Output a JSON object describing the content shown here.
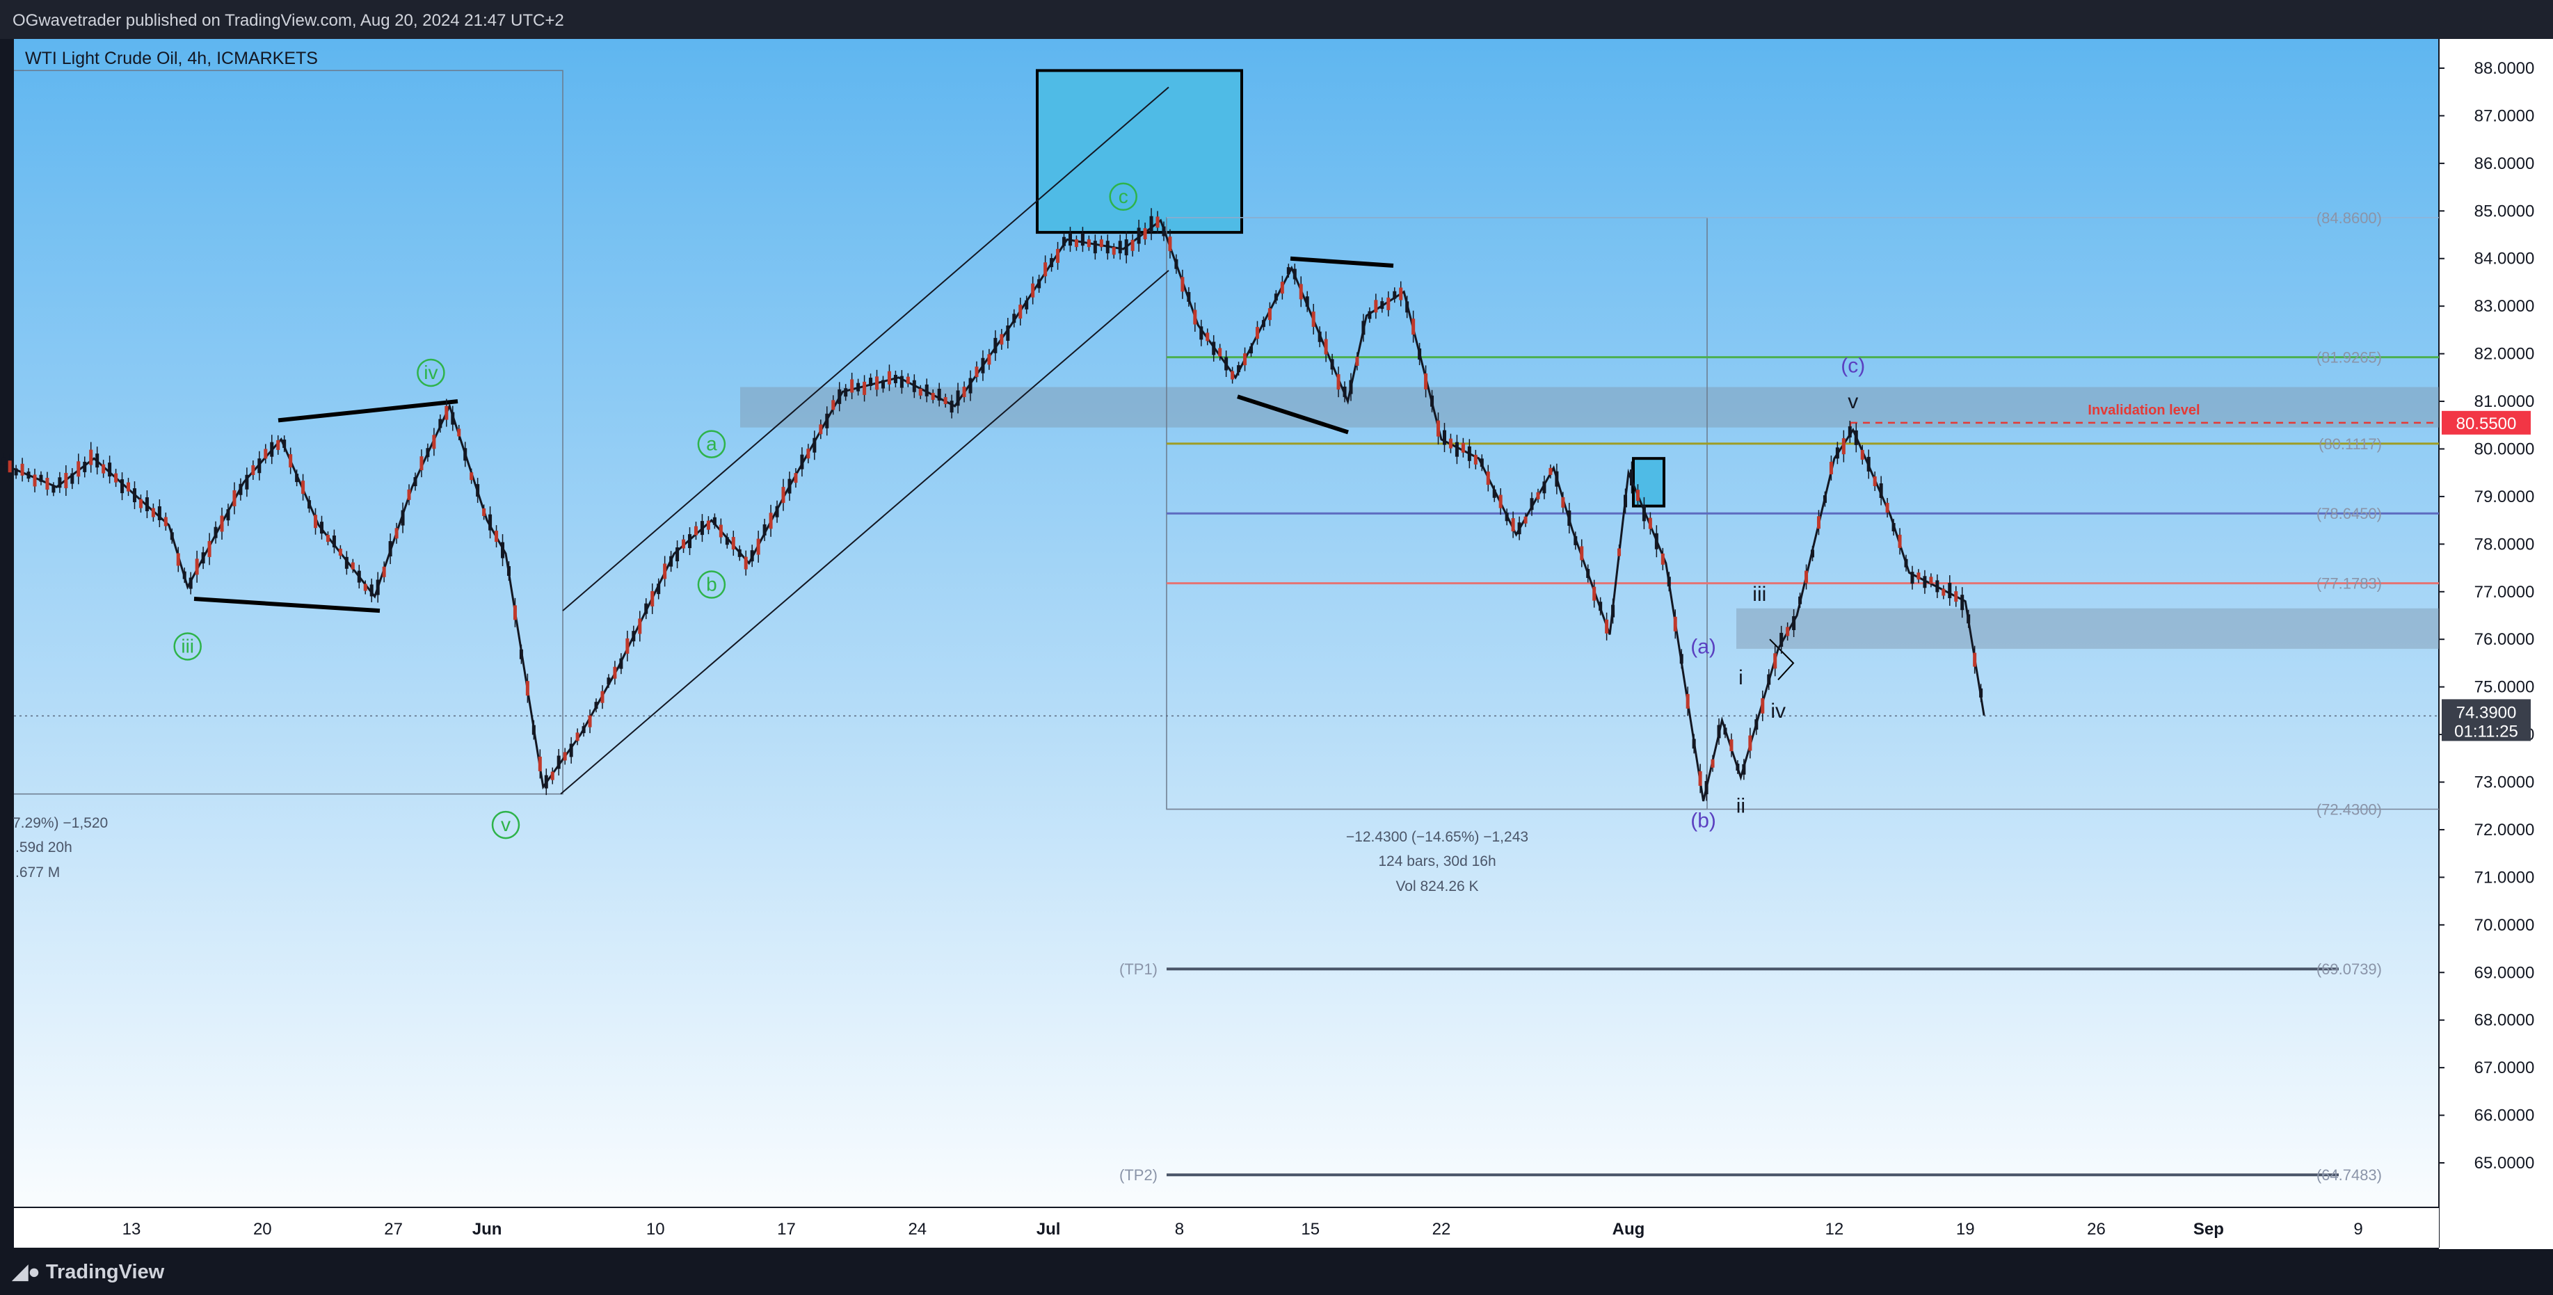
{
  "header": {
    "publisher": "OGwavetrader published on TradingView.com, Aug 20, 2024 21:47 UTC+2"
  },
  "footer": {
    "logo": "TradingView"
  },
  "chart_data": {
    "type": "candlestick",
    "title": "WTI Light Crude Oil, 4h, ICMARKETS",
    "ylim": [
      64.3,
      88.7
    ],
    "y_ticks": [
      "65.0000",
      "66.0000",
      "67.0000",
      "68.0000",
      "69.0000",
      "70.0000",
      "71.0000",
      "72.0000",
      "73.0000",
      "74.0000",
      "75.0000",
      "76.0000",
      "77.0000",
      "78.0000",
      "79.0000",
      "80.0000",
      "81.0000",
      "82.0000",
      "83.0000",
      "84.0000",
      "85.0000",
      "86.0000",
      "87.0000",
      "88.0000"
    ],
    "x_ticks": [
      {
        "label": "13",
        "date": "2024-05-13"
      },
      {
        "label": "20",
        "date": "2024-05-20"
      },
      {
        "label": "27",
        "date": "2024-05-27"
      },
      {
        "label": "Jun",
        "date": "2024-06-01"
      },
      {
        "label": "10",
        "date": "2024-06-10"
      },
      {
        "label": "17",
        "date": "2024-06-17"
      },
      {
        "label": "24",
        "date": "2024-06-24"
      },
      {
        "label": "Jul",
        "date": "2024-07-01"
      },
      {
        "label": "8",
        "date": "2024-07-08"
      },
      {
        "label": "15",
        "date": "2024-07-15"
      },
      {
        "label": "22",
        "date": "2024-07-22"
      },
      {
        "label": "Aug",
        "date": "2024-08-01"
      },
      {
        "label": "12",
        "date": "2024-08-12"
      },
      {
        "label": "19",
        "date": "2024-08-19"
      },
      {
        "label": "26",
        "date": "2024-08-26"
      },
      {
        "label": "Sep",
        "date": "2024-09-01"
      },
      {
        "label": "9",
        "date": "2024-09-09"
      }
    ],
    "price_path": [
      {
        "date": "2024-05-06",
        "price": 79.7
      },
      {
        "date": "2024-05-09",
        "price": 79.2
      },
      {
        "date": "2024-05-11",
        "price": 79.8
      },
      {
        "date": "2024-05-15",
        "price": 78.4
      },
      {
        "date": "2024-05-16",
        "price": 77.1
      },
      {
        "date": "2024-05-19",
        "price": 79.3
      },
      {
        "date": "2024-05-21",
        "price": 80.2
      },
      {
        "date": "2024-05-23",
        "price": 78.4
      },
      {
        "date": "2024-05-26",
        "price": 76.9
      },
      {
        "date": "2024-05-28",
        "price": 79.2
      },
      {
        "date": "2024-05-30",
        "price": 80.9
      },
      {
        "date": "2024-06-01",
        "price": 78.5
      },
      {
        "date": "2024-06-02",
        "price": 77.8
      },
      {
        "date": "2024-06-04",
        "price": 72.9
      },
      {
        "date": "2024-06-06",
        "price": 74.0
      },
      {
        "date": "2024-06-08",
        "price": 75.4
      },
      {
        "date": "2024-06-11",
        "price": 77.8
      },
      {
        "date": "2024-06-13",
        "price": 78.5
      },
      {
        "date": "2024-06-15",
        "price": 77.6
      },
      {
        "date": "2024-06-17",
        "price": 79.1
      },
      {
        "date": "2024-06-20",
        "price": 81.2
      },
      {
        "date": "2024-06-23",
        "price": 81.5
      },
      {
        "date": "2024-06-26",
        "price": 80.9
      },
      {
        "date": "2024-06-29",
        "price": 82.6
      },
      {
        "date": "2024-07-02",
        "price": 84.4
      },
      {
        "date": "2024-07-05",
        "price": 84.2
      },
      {
        "date": "2024-07-07",
        "price": 84.8
      },
      {
        "date": "2024-07-09",
        "price": 82.6
      },
      {
        "date": "2024-07-11",
        "price": 81.5
      },
      {
        "date": "2024-07-14",
        "price": 83.8
      },
      {
        "date": "2024-07-17",
        "price": 81.0
      },
      {
        "date": "2024-07-18",
        "price": 82.8
      },
      {
        "date": "2024-07-20",
        "price": 83.3
      },
      {
        "date": "2024-07-22",
        "price": 80.2
      },
      {
        "date": "2024-07-24",
        "price": 79.8
      },
      {
        "date": "2024-07-26",
        "price": 78.2
      },
      {
        "date": "2024-07-28",
        "price": 79.6
      },
      {
        "date": "2024-07-29",
        "price": 78.3
      },
      {
        "date": "2024-07-31",
        "price": 76.1
      },
      {
        "date": "2024-08-01",
        "price": 79.5
      },
      {
        "date": "2024-08-03",
        "price": 77.6
      },
      {
        "date": "2024-08-05",
        "price": 72.6
      },
      {
        "date": "2024-08-06",
        "price": 74.3
      },
      {
        "date": "2024-08-07",
        "price": 73.1
      },
      {
        "date": "2024-08-09",
        "price": 75.8
      },
      {
        "date": "2024-08-10",
        "price": 76.5
      },
      {
        "date": "2024-08-12",
        "price": 79.8
      },
      {
        "date": "2024-08-13",
        "price": 80.4
      },
      {
        "date": "2024-08-15",
        "price": 78.6
      },
      {
        "date": "2024-08-16",
        "price": 77.4
      },
      {
        "date": "2024-08-18",
        "price": 77.0
      },
      {
        "date": "2024-08-19",
        "price": 76.8
      },
      {
        "date": "2024-08-20",
        "price": 74.4
      }
    ],
    "h_levels": [
      {
        "label": "(84.8600)",
        "value": 84.86,
        "color": "#8fb3d6"
      },
      {
        "label": "(81.9265)",
        "value": 81.9265,
        "color": "#4caf50"
      },
      {
        "label": "(80.1117)",
        "value": 80.1117,
        "color": "#9e9d24"
      },
      {
        "label": "(78.6450)",
        "value": 78.645,
        "color": "#5c6bc0"
      },
      {
        "label": "(77.1783)",
        "value": 77.1783,
        "color": "#e57373"
      },
      {
        "label": "(72.4300)",
        "value": 72.43,
        "color": "#7a8599"
      }
    ],
    "tp_levels": [
      {
        "label": "(TP1)",
        "price": "(69.0739)",
        "value": 69.0739
      },
      {
        "label": "(TP2)",
        "price": "(64.7483)",
        "value": 64.7483
      }
    ],
    "current_price": {
      "value": 74.39,
      "label": "74.3900",
      "countdown": "01:11:25"
    },
    "invalidation": {
      "value": 80.55,
      "label": "80.5500",
      "text": "Invalidation level"
    },
    "measure_right": [
      "−12.4300 (−14.65%) −1,243",
      "124 bars, 30d 16h",
      "Vol 824.26 K"
    ],
    "measure_left": [
      "7.29%) −1,520",
      ".59d 20h",
      ".677 M"
    ],
    "wave_labels": [
      {
        "text": "iii",
        "kind": "circle-green"
      },
      {
        "text": "iv",
        "kind": "circle-green"
      },
      {
        "text": "v",
        "kind": "circle-green"
      },
      {
        "text": "a",
        "kind": "circle-green"
      },
      {
        "text": "b",
        "kind": "circle-green"
      },
      {
        "text": "c",
        "kind": "circle-green"
      },
      {
        "text": "(a)",
        "kind": "blue"
      },
      {
        "text": "(b)",
        "kind": "blue"
      },
      {
        "text": "(c)",
        "kind": "blue"
      },
      {
        "text": "i",
        "kind": "black"
      },
      {
        "text": "ii",
        "kind": "black"
      },
      {
        "text": "iii",
        "kind": "black"
      },
      {
        "text": "iv",
        "kind": "black"
      },
      {
        "text": "v",
        "kind": "black"
      }
    ]
  }
}
